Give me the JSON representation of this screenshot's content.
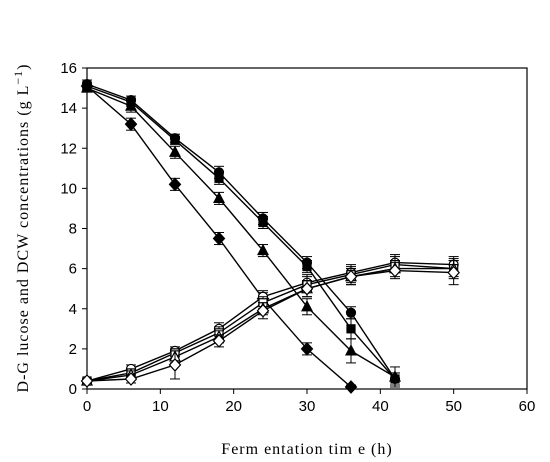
{
  "chart_data": {
    "type": "scatter",
    "title": "",
    "xlabel": "Ferm entation tim e (h)",
    "ylabel": "D-G lucose and DCW  concentrations (g L",
    "ylabel_sup": "−1",
    "ylabel_close": ")",
    "xlim": [
      0,
      60
    ],
    "ylim": [
      0,
      16
    ],
    "xticks": [
      0,
      10,
      20,
      30,
      40,
      50,
      60
    ],
    "yticks": [
      0,
      2,
      4,
      6,
      8,
      10,
      12,
      14,
      16
    ],
    "grid": false,
    "legend": "none",
    "series": [
      {
        "marker": "filled-circle",
        "x": [
          0,
          6,
          12,
          18,
          24,
          30,
          36,
          42
        ],
        "y": [
          15.2,
          14.4,
          12.5,
          10.8,
          8.5,
          6.3,
          3.8,
          0.5
        ],
        "err": [
          0.2,
          0.2,
          0.2,
          0.3,
          0.3,
          0.3,
          0.3,
          0.3
        ]
      },
      {
        "marker": "filled-square",
        "x": [
          0,
          6,
          12,
          18,
          24,
          30,
          36,
          42
        ],
        "y": [
          15.1,
          14.3,
          12.4,
          10.5,
          8.3,
          6.1,
          3.0,
          0.5
        ],
        "err": [
          0.2,
          0.2,
          0.2,
          0.3,
          0.3,
          0.3,
          0.5,
          0.3
        ]
      },
      {
        "marker": "filled-triangle",
        "x": [
          0,
          6,
          12,
          18,
          24,
          30,
          36,
          42
        ],
        "y": [
          15.0,
          14.1,
          11.8,
          9.5,
          6.9,
          4.1,
          1.9,
          0.6
        ],
        "err": [
          0.2,
          0.3,
          0.3,
          0.3,
          0.3,
          0.4,
          0.6,
          0.5
        ]
      },
      {
        "marker": "filled-diamond",
        "x": [
          0,
          6,
          12,
          18,
          24,
          30,
          36
        ],
        "y": [
          15.1,
          13.2,
          10.2,
          7.5,
          4.5,
          2.0,
          0.1
        ],
        "err": [
          0.2,
          0.3,
          0.3,
          0.3,
          0.3,
          0.3,
          0.1
        ]
      },
      {
        "marker": "open-circle",
        "x": [
          0,
          6,
          12,
          18,
          24,
          30,
          36,
          42,
          50
        ],
        "y": [
          0.4,
          1.0,
          1.9,
          3.0,
          4.6,
          5.3,
          5.8,
          6.3,
          6.2
        ],
        "err": [
          0.1,
          0.2,
          0.2,
          0.3,
          0.3,
          0.4,
          0.4,
          0.4,
          0.4
        ]
      },
      {
        "marker": "open-square",
        "x": [
          0,
          6,
          12,
          18,
          24,
          30,
          36,
          42,
          50
        ],
        "y": [
          0.4,
          0.8,
          1.8,
          2.8,
          4.3,
          5.2,
          5.7,
          6.2,
          6.0
        ],
        "err": [
          0.1,
          0.2,
          0.2,
          0.3,
          0.3,
          0.4,
          0.4,
          0.4,
          0.4
        ]
      },
      {
        "marker": "open-triangle",
        "x": [
          0,
          6,
          12,
          18,
          24,
          30,
          36,
          42,
          50
        ],
        "y": [
          0.4,
          0.7,
          1.6,
          2.6,
          4.0,
          5.0,
          5.6,
          6.0,
          6.0
        ],
        "err": [
          0.1,
          0.2,
          0.3,
          0.3,
          0.3,
          0.4,
          0.4,
          0.4,
          0.5
        ]
      },
      {
        "marker": "open-diamond",
        "x": [
          0,
          6,
          12,
          18,
          24,
          30,
          36,
          42,
          50
        ],
        "y": [
          0.4,
          0.5,
          1.2,
          2.4,
          3.9,
          5.0,
          5.6,
          5.9,
          5.8
        ],
        "err": [
          0.1,
          0.2,
          0.7,
          0.3,
          0.4,
          0.4,
          0.4,
          0.4,
          0.6
        ]
      }
    ]
  }
}
